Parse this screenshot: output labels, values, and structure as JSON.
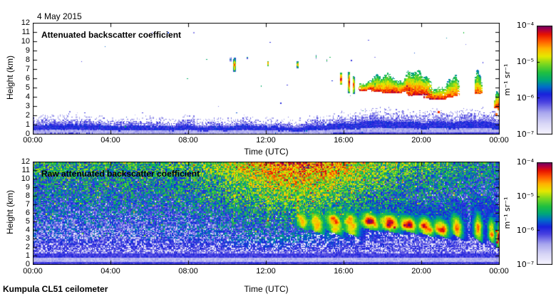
{
  "figure": {
    "date_title": "4 May 2015",
    "footer": "Kumpula CL51 ceilometer"
  },
  "colors": {
    "background": "#ffffff",
    "frame": "#000000",
    "text": "#000000",
    "colormap_stops": [
      [
        0.0,
        "#f6f4ff"
      ],
      [
        0.1,
        "#d8d6f6"
      ],
      [
        0.2,
        "#a8a6ee"
      ],
      [
        0.3,
        "#4840e0"
      ],
      [
        0.37,
        "#1822dc"
      ],
      [
        0.44,
        "#0070c8"
      ],
      [
        0.5,
        "#00a878"
      ],
      [
        0.57,
        "#20c040"
      ],
      [
        0.65,
        "#7ed81e"
      ],
      [
        0.72,
        "#e6e800"
      ],
      [
        0.79,
        "#ffb400"
      ],
      [
        0.86,
        "#ff5a00"
      ],
      [
        0.92,
        "#e81400"
      ],
      [
        0.96,
        "#b4003c"
      ],
      [
        1.0,
        "#6e0064"
      ]
    ]
  },
  "chart_data": [
    {
      "type": "heatmap",
      "title": "Attenuated backscatter coefficient",
      "xlabel": "Time (UTC)",
      "ylabel": "Height (km)",
      "x_range_hours": [
        0,
        24
      ],
      "y_range_km": [
        0,
        12
      ],
      "x_tick_labels": [
        "00:00",
        "04:00",
        "08:00",
        "12:00",
        "16:00",
        "20:00",
        "00:00"
      ],
      "y_tick_labels": [
        "0",
        "1",
        "2",
        "3",
        "4",
        "5",
        "6",
        "7",
        "8",
        "9",
        "10",
        "11",
        "12"
      ],
      "grid": false,
      "colorbar": {
        "unit": "m⁻¹ sr⁻¹",
        "scale": "log",
        "range_min": "1e-7",
        "range_max": "1e-4",
        "tick_labels": [
          "10⁻⁴",
          "10⁻⁵",
          "10⁻⁶",
          "10⁻⁷"
        ]
      },
      "content": {
        "background": "white where signal is below noise floor",
        "boundary_layer": {
          "night_top_km": 1.78,
          "decline_per_hour": 0.022,
          "rise_start_hour": 14.2,
          "rise_amount_km": 1.05,
          "rise_hours": 3.2,
          "late_drop_start": 22.3,
          "late_drop_km": 0.25
        },
        "thin_cloud_streaks": [
          {
            "t": 10.18,
            "w": 0.05,
            "h0": 7.9,
            "h1": 8.2,
            "v": 0.7
          },
          {
            "t": 10.38,
            "w": 0.1,
            "h0": 6.8,
            "h1": 8.1,
            "v": 0.9
          },
          {
            "t": 11.05,
            "w": 0.04,
            "h0": 8.15,
            "h1": 8.35,
            "v": 0.55
          },
          {
            "t": 12.08,
            "w": 0.07,
            "h0": 7.3,
            "h1": 7.95,
            "v": 0.82
          },
          {
            "t": 13.62,
            "w": 0.08,
            "h0": 7.15,
            "h1": 7.85,
            "v": 0.85
          },
          {
            "t": 14.55,
            "w": 0.05,
            "h0": 8.2,
            "h1": 8.5,
            "v": 0.65
          },
          {
            "t": 15.12,
            "w": 0.04,
            "h0": 7.85,
            "h1": 8.05,
            "v": 0.6
          },
          {
            "t": 15.85,
            "w": 0.1,
            "h0": 5.3,
            "h1": 6.6,
            "v": 0.92
          },
          {
            "t": 16.25,
            "w": 0.09,
            "h0": 4.45,
            "h1": 6.7,
            "v": 0.93
          },
          {
            "t": 16.5,
            "w": 0.08,
            "h0": 4.35,
            "h1": 6.25,
            "v": 0.88
          }
        ],
        "cloud_blobs": [
          {
            "tc": 17.25,
            "tw": 0.38,
            "hb": 4.85,
            "ht": 6.4,
            "vp": 0.93
          },
          {
            "tc": 18.05,
            "tw": 0.5,
            "hb": 4.6,
            "ht": 7.25,
            "vp": 0.93
          },
          {
            "tc": 18.95,
            "tw": 0.55,
            "hb": 4.5,
            "ht": 7.3,
            "vp": 0.93
          },
          {
            "tc": 19.85,
            "tw": 0.5,
            "hb": 4.25,
            "ht": 6.9,
            "vp": 0.94
          },
          {
            "tc": 20.7,
            "tw": 0.45,
            "hb": 3.95,
            "ht": 6.5,
            "vp": 0.95
          },
          {
            "tc": 21.55,
            "tw": 0.3,
            "hb": 4.1,
            "ht": 6.9,
            "vp": 0.9
          },
          {
            "tc": 22.92,
            "tw": 0.16,
            "hb": 4.3,
            "ht": 7.0,
            "vp": 0.88
          },
          {
            "tc": 23.9,
            "tw": 0.12,
            "hb": 2.9,
            "ht": 6.1,
            "vp": 0.92
          }
        ],
        "specks": [
          {
            "t": 20.85,
            "h": 2.35,
            "v": 0.9
          },
          {
            "t": 23.82,
            "h": 2.2,
            "v": 0.85
          },
          {
            "t": 23.95,
            "h": 2.8,
            "v": 0.82
          }
        ]
      }
    },
    {
      "type": "heatmap",
      "title": "Raw attenuated backscatter coefficient",
      "xlabel": "Time (UTC)",
      "ylabel": "Height (km)",
      "x_range_hours": [
        0,
        24
      ],
      "y_range_km": [
        0,
        12
      ],
      "x_tick_labels": [
        "00:00",
        "04:00",
        "08:00",
        "12:00",
        "16:00",
        "20:00",
        "00:00"
      ],
      "y_tick_labels": [
        "0",
        "1",
        "2",
        "3",
        "4",
        "5",
        "6",
        "7",
        "8",
        "9",
        "10",
        "11",
        "12"
      ],
      "grid": false,
      "colorbar": {
        "unit": "m⁻¹ sr⁻¹",
        "scale": "log",
        "range_min": "1e-7",
        "range_max": "1e-4",
        "tick_labels": [
          "10⁻⁴",
          "10⁻⁵",
          "10⁻⁶",
          "10⁻⁷"
        ]
      },
      "content": {
        "background": "range-dependent receiver noise, green/yellow aloft, blue near ground",
        "noise": {
          "base": 0.16,
          "gain": 0.38,
          "pow": 0.9,
          "jitter": 0.36
        },
        "solar_noise": {
          "peak_hour": 13.6,
          "sigma_hours": 3.9,
          "strength": 0.34
        },
        "boundary_layer": {
          "solid_top_km": 0.33,
          "stripe_top_km": 0.88,
          "band_top_km": 1.4,
          "speckle_top_night_km": 3.0,
          "speckle_top_day_km": 4.3
        },
        "streak_hints_hours": [
          10.35,
          12.08,
          13.62
        ],
        "cloud_blobs": [
          {
            "tc": 13.85,
            "tw": 0.3,
            "hb": 4.7,
            "ht": 6.6,
            "vp": 0.75,
            "slope": 0.8
          },
          {
            "tc": 14.6,
            "tw": 0.35,
            "hb": 4.4,
            "ht": 6.8,
            "vp": 0.82,
            "slope": 0.9
          },
          {
            "tc": 15.5,
            "tw": 0.4,
            "hb": 4.3,
            "ht": 6.9,
            "vp": 0.85,
            "slope": 0.9
          },
          {
            "tc": 16.35,
            "tw": 0.4,
            "hb": 4.2,
            "ht": 6.8,
            "vp": 0.86,
            "slope": 0.8
          },
          {
            "tc": 17.3,
            "tw": 0.5,
            "hb": 4.6,
            "ht": 6.5,
            "vp": 0.9,
            "slope": 0.5
          },
          {
            "tc": 18.3,
            "tw": 0.55,
            "hb": 4.4,
            "ht": 6.4,
            "vp": 0.92,
            "slope": 0.5
          },
          {
            "tc": 19.3,
            "tw": 0.5,
            "hb": 4.3,
            "ht": 6.1,
            "vp": 0.9,
            "slope": 0.6
          },
          {
            "tc": 20.2,
            "tw": 0.45,
            "hb": 4.0,
            "ht": 5.9,
            "vp": 0.92,
            "slope": 0.7
          },
          {
            "tc": 21.0,
            "tw": 0.4,
            "hb": 3.8,
            "ht": 5.7,
            "vp": 0.9,
            "slope": 0.8
          },
          {
            "tc": 21.8,
            "tw": 0.3,
            "hb": 3.9,
            "ht": 6.2,
            "vp": 0.85,
            "slope": 1.2
          },
          {
            "tc": 22.9,
            "tw": 0.22,
            "hb": 3.6,
            "ht": 6.5,
            "vp": 0.82,
            "slope": 1.4
          },
          {
            "tc": 23.6,
            "tw": 0.18,
            "hb": 3.3,
            "ht": 6.0,
            "vp": 0.8,
            "slope": 1.5
          },
          {
            "tc": 23.95,
            "tw": 0.1,
            "hb": 2.6,
            "ht": 5.2,
            "vp": 0.9,
            "slope": 0.2
          }
        ],
        "specks": [
          {
            "t": 23.9,
            "h": 2.6,
            "v": 0.95
          },
          {
            "t": 23.82,
            "h": 4.0,
            "v": 0.9
          },
          {
            "t": 19.1,
            "h": 4.55,
            "v": 0.97
          },
          {
            "t": 18.6,
            "h": 4.35,
            "v": 0.95
          }
        ]
      }
    }
  ]
}
